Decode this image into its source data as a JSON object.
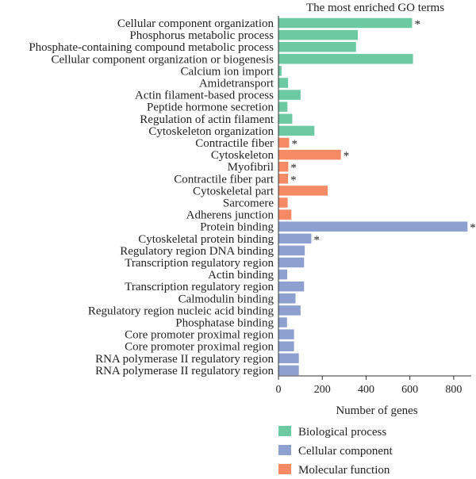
{
  "chart_data": {
    "type": "bar",
    "orientation": "horizontal",
    "title": "The most enriched GO terms",
    "xlabel": "Number of genes",
    "ylabel": "",
    "xlim": [
      0,
      880
    ],
    "xticks": [
      0,
      200,
      400,
      600,
      800
    ],
    "grid": false,
    "legend_position": "bottom",
    "colors": {
      "Biological process": "#6cc9a2",
      "Cellular component": "#8da0cf",
      "Molecular function": "#f58a64"
    },
    "legend": [
      "Biological process",
      "Cellular component",
      "Molecular function"
    ],
    "legend_colors": [
      "#6cc9a2",
      "#8da0cf",
      "#f58a64"
    ],
    "bars": [
      {
        "label": "Cellular component organization",
        "value": 610,
        "group": "Biological process",
        "marker": "*"
      },
      {
        "label": "Phosphorus metabolic process",
        "value": 362,
        "group": "Biological process",
        "marker": ""
      },
      {
        "label": "Phosphate-containing compound metabolic process",
        "value": 354,
        "group": "Biological process",
        "marker": ""
      },
      {
        "label": "Cellular component organization or biogenesis",
        "value": 614,
        "group": "Biological process",
        "marker": ""
      },
      {
        "label": "Calcium ion import",
        "value": 14,
        "group": "Biological process",
        "marker": ""
      },
      {
        "label": "Amidetransport",
        "value": 44,
        "group": "Biological process",
        "marker": ""
      },
      {
        "label": "Actin filament-based process",
        "value": 101,
        "group": "Biological process",
        "marker": ""
      },
      {
        "label": "Peptide hormone secretion",
        "value": 41,
        "group": "Biological process",
        "marker": ""
      },
      {
        "label": "Regulation of actin filament",
        "value": 63,
        "group": "Biological process",
        "marker": ""
      },
      {
        "label": "Cytoskeleton organization",
        "value": 164,
        "group": "Biological process",
        "marker": ""
      },
      {
        "label": "Contractile fiber",
        "value": 49,
        "group": "Molecular function",
        "marker": "*"
      },
      {
        "label": "Cytoskeleton",
        "value": 285,
        "group": "Molecular function",
        "marker": "*"
      },
      {
        "label": "Myofibril",
        "value": 45,
        "group": "Molecular function",
        "marker": "*"
      },
      {
        "label": "Contractile fiber part",
        "value": 44,
        "group": "Molecular function",
        "marker": "*"
      },
      {
        "label": "Cytoskeletal part",
        "value": 225,
        "group": "Molecular function",
        "marker": ""
      },
      {
        "label": "Sarcomere",
        "value": 42,
        "group": "Molecular function",
        "marker": ""
      },
      {
        "label": "Adherens junction",
        "value": 59,
        "group": "Molecular function",
        "marker": ""
      },
      {
        "label": "Protein binding",
        "value": 863,
        "group": "Cellular component",
        "marker": "*"
      },
      {
        "label": "Cytoskeletal protein binding",
        "value": 150,
        "group": "Cellular component",
        "marker": "*"
      },
      {
        "label": "Regulatory region DNA binding",
        "value": 120,
        "group": "Cellular component",
        "marker": ""
      },
      {
        "label": "Transcription regulatory region",
        "value": 117,
        "group": "Cellular component",
        "marker": ""
      },
      {
        "label": "Actin binding",
        "value": 40,
        "group": "Cellular component",
        "marker": ""
      },
      {
        "label": "Transcription regulatory region",
        "value": 117,
        "group": "Cellular component",
        "marker": ""
      },
      {
        "label": "Calmodulin binding",
        "value": 78,
        "group": "Cellular component",
        "marker": ""
      },
      {
        "label": "Regulatory region nucleic acid binding",
        "value": 101,
        "group": "Cellular component",
        "marker": ""
      },
      {
        "label": "Phosphatase binding",
        "value": 39,
        "group": "Cellular component",
        "marker": ""
      },
      {
        "label": "Core promoter proximal region",
        "value": 71,
        "group": "Cellular component",
        "marker": ""
      },
      {
        "label": "Core promoter proximal region",
        "value": 71,
        "group": "Cellular component",
        "marker": ""
      },
      {
        "label": "RNA polymerase II regulatory region",
        "value": 93,
        "group": "Cellular component",
        "marker": ""
      },
      {
        "label": "RNA polymerase II regulatory region",
        "value": 93,
        "group": "Cellular component",
        "marker": ""
      }
    ]
  }
}
